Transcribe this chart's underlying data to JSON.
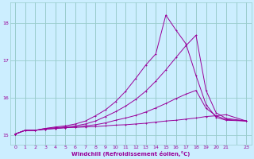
{
  "xlabel": "Windchill (Refroidissement éolien,°C)",
  "bg_color": "#cceeff",
  "line_color": "#990099",
  "grid_color": "#99cccc",
  "xlim": [
    -0.5,
    23.5
  ],
  "ylim": [
    14.75,
    18.55
  ],
  "xtick_labels": [
    "0",
    "1",
    "2",
    "3",
    "4",
    "5",
    "6",
    "7",
    "8",
    "9",
    "10",
    "11",
    "12",
    "13",
    "14",
    "15",
    "16",
    "17",
    "18",
    "19",
    "20",
    "21",
    "",
    "23"
  ],
  "xtick_pos": [
    0,
    1,
    2,
    3,
    4,
    5,
    6,
    7,
    8,
    9,
    10,
    11,
    12,
    13,
    14,
    15,
    16,
    17,
    18,
    19,
    20,
    21,
    22,
    23
  ],
  "yticks": [
    15,
    16,
    17,
    18
  ],
  "line1_x": [
    0,
    1,
    2,
    3,
    4,
    5,
    6,
    7,
    8,
    9,
    10,
    11,
    12,
    13,
    14,
    15,
    16,
    17,
    18,
    19,
    20,
    21,
    23
  ],
  "line1_y": [
    15.03,
    15.13,
    15.13,
    15.16,
    15.18,
    15.2,
    15.21,
    15.22,
    15.23,
    15.25,
    15.27,
    15.28,
    15.3,
    15.32,
    15.35,
    15.38,
    15.4,
    15.43,
    15.46,
    15.5,
    15.52,
    15.55,
    15.38
  ],
  "line2_x": [
    0,
    1,
    2,
    3,
    4,
    5,
    6,
    7,
    8,
    9,
    10,
    11,
    12,
    13,
    14,
    15,
    16,
    17,
    18,
    19,
    20,
    21,
    23
  ],
  "line2_y": [
    15.03,
    15.13,
    15.13,
    15.16,
    15.18,
    15.2,
    15.22,
    15.25,
    15.28,
    15.33,
    15.4,
    15.46,
    15.53,
    15.62,
    15.73,
    15.85,
    15.98,
    16.1,
    16.2,
    15.72,
    15.52,
    15.42,
    15.38
  ],
  "line3_x": [
    0,
    1,
    2,
    3,
    4,
    5,
    6,
    7,
    8,
    9,
    10,
    11,
    12,
    13,
    14,
    15,
    16,
    17,
    18,
    19,
    20,
    21,
    23
  ],
  "line3_y": [
    15.03,
    15.13,
    15.13,
    15.18,
    15.2,
    15.22,
    15.25,
    15.3,
    15.38,
    15.5,
    15.63,
    15.78,
    15.96,
    16.18,
    16.45,
    16.75,
    17.08,
    17.4,
    17.68,
    16.2,
    15.6,
    15.45,
    15.38
  ],
  "line4_x": [
    0,
    1,
    2,
    3,
    4,
    5,
    6,
    7,
    8,
    9,
    10,
    11,
    12,
    13,
    14,
    15,
    16,
    17,
    18,
    19,
    20,
    21,
    23
  ],
  "line4_y": [
    15.03,
    15.13,
    15.13,
    15.18,
    15.22,
    15.25,
    15.3,
    15.38,
    15.52,
    15.68,
    15.9,
    16.18,
    16.52,
    16.88,
    17.18,
    18.22,
    17.82,
    17.45,
    16.6,
    15.82,
    15.48,
    15.4,
    15.38
  ]
}
